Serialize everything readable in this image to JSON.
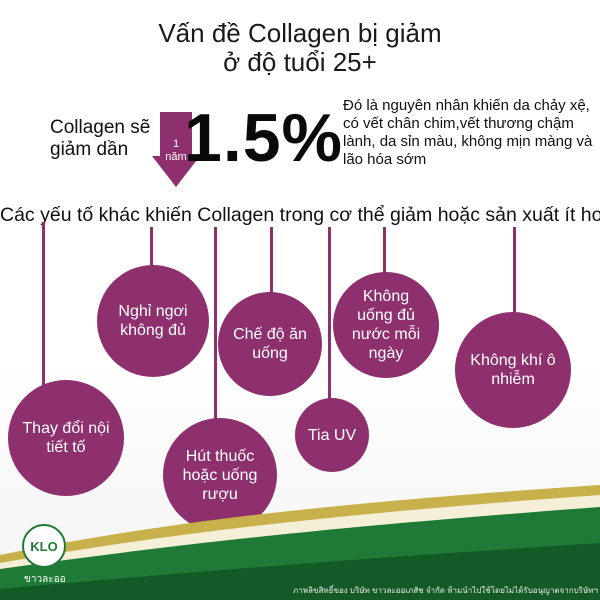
{
  "title_line1": "Vấn đề Collagen bị giảm",
  "title_line2": "ở độ tuổi 25+",
  "lead_line1": "Collagen sẽ",
  "lead_line2": "giảm dần",
  "arrow_line1": "1",
  "arrow_line2": "năm",
  "percent": "1.5%",
  "description": "Đó là nguyên nhân khiến da chảy xệ, có vết chân chim,vết thương chậm lành, da sỉn màu, không mịn màng và lão hóa sớm",
  "subheading": "Các yếu tố khác khiến Collagen trong cơ thể giảm hoặc sản xuất ít hơn",
  "factors": {
    "hormone": "Thay đổi nội tiết tố",
    "rest": "Nghỉ ngơi không đủ",
    "smoking": "Hút thuốc hoặc uống rượu",
    "diet": "Chế độ ăn uống",
    "uv": "Tia UV",
    "water": "Không uống đủ nước mỗi ngày",
    "air": "Không khí ô nhiễm"
  },
  "logo_text": "KLO",
  "brand_name": "ขาวละออ",
  "copyright": "ภาพลิขสิทธิ์ของ บริษัท ขาวละออเภสัช จำกัด ห้ามนำไปใช้โดยไม่ได้รับอนุญาตจากบริษัทฯ",
  "colors": {
    "accent": "#8e2f6e",
    "green": "#1e7a36",
    "gold": "#c8b04a"
  }
}
